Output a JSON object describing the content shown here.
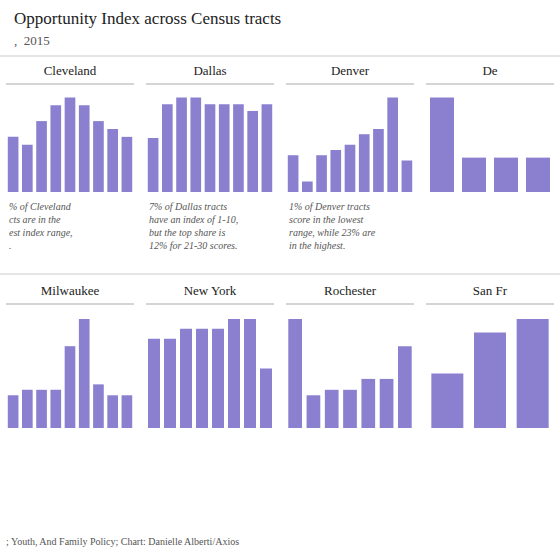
{
  "title": "Opportunity Index across Census tracts",
  "subtitle": ",  2015",
  "annotations": [
    "; Youth, And Family Policy; Chart: Danielle Alberti/Axios"
  ],
  "chart_data": [
    {
      "type": "bar",
      "title": "Cleveland",
      "categories": [
        null,
        null,
        null,
        null,
        null,
        null,
        null,
        null,
        null
      ],
      "values": [
        3.5,
        3.0,
        4.5,
        5.5,
        6.0,
        5.5,
        4.5,
        4.0,
        3.5
      ],
      "color": "#8B80D0",
      "ylim": [
        0,
        6.6
      ],
      "grid": false,
      "tick_labels": false,
      "annotations": [
        "% of Cleveland\ncts are in the\nest index range,\n."
      ]
    },
    {
      "type": "bar",
      "title": "Dallas",
      "categories": [
        null,
        null,
        null,
        null,
        null,
        null,
        null,
        null,
        null
      ],
      "values": [
        4.0,
        6.5,
        7.0,
        7.0,
        6.5,
        6.5,
        6.5,
        6.0,
        6.5
      ],
      "color": "#8B80D0",
      "ylim": [
        0,
        7.7
      ],
      "grid": false,
      "tick_labels": false,
      "annotations": [
        "7% of Dallas tracts\nhave an index of 1-10,\nbut the top share is\n12% for 21-30 scores."
      ]
    },
    {
      "type": "bar",
      "title": "Denver",
      "categories": [
        null,
        null,
        null,
        null,
        null,
        null,
        null,
        null,
        null
      ],
      "values": [
        3.5,
        1.0,
        3.5,
        4.0,
        4.5,
        5.5,
        6.0,
        9.0,
        3.0
      ],
      "color": "#8B80D0",
      "ylim": [
        0,
        9.9
      ],
      "grid": false,
      "tick_labels": false,
      "annotations": [
        "1% of Denver tracts\nscore in the lowest\nrange, while 23% are\nin the highest."
      ]
    },
    {
      "type": "bar",
      "title": "De",
      "categories": [
        null,
        null,
        null,
        null
      ],
      "values": [
        11.0,
        4.0,
        4.0,
        4.0
      ],
      "color": "#8B80D0",
      "ylim": [
        0,
        12.1
      ],
      "grid": false,
      "tick_labels": false
    },
    {
      "type": "bar",
      "title": "Milwaukee",
      "categories": [
        null,
        null,
        null,
        null,
        null,
        null,
        null,
        null,
        null
      ],
      "values": [
        3.0,
        3.5,
        3.5,
        3.5,
        7.5,
        10.0,
        4.0,
        3.0,
        3.0
      ],
      "color": "#8B80D0",
      "ylim": [
        0,
        11
      ],
      "grid": false,
      "tick_labels": false
    },
    {
      "type": "bar",
      "title": "New York",
      "categories": [
        null,
        null,
        null,
        null,
        null,
        null,
        null,
        null
      ],
      "values": [
        4.5,
        4.5,
        5.0,
        5.0,
        5.0,
        5.5,
        5.5,
        3.0
      ],
      "color": "#8B80D0",
      "ylim": [
        0,
        6.05
      ],
      "grid": false,
      "tick_labels": false
    },
    {
      "type": "bar",
      "title": "Rochester",
      "categories": [
        null,
        null,
        null,
        null,
        null,
        null,
        null
      ],
      "values": [
        10.0,
        3.0,
        3.5,
        3.5,
        4.5,
        4.5,
        7.5
      ],
      "color": "#8B80D0",
      "ylim": [
        0,
        11
      ],
      "grid": false,
      "tick_labels": false
    },
    {
      "type": "bar",
      "title": "San Fr",
      "categories": [
        null,
        null,
        null
      ],
      "values": [
        2.0,
        3.5,
        4.0
      ],
      "color": "#8B80D0",
      "ylim": [
        0,
        4.4
      ],
      "grid": false,
      "tick_labels": false
    }
  ]
}
